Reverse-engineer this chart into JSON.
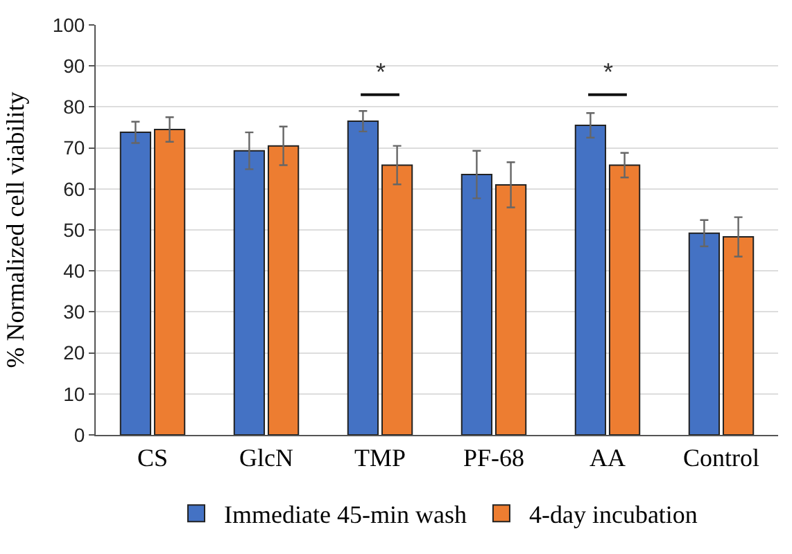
{
  "chart_data": {
    "type": "bar",
    "ylabel": "% Normalized cell viability",
    "categories": [
      "CS",
      "GlcN",
      "TMP",
      "PF-68",
      "AA",
      "Control"
    ],
    "series": [
      {
        "name": "Immediate 45-min wash",
        "color": "#4472c4",
        "values": [
          73.8,
          69.3,
          76.5,
          63.5,
          75.5,
          49.2
        ],
        "errors": [
          2.6,
          4.5,
          2.5,
          5.8,
          3.0,
          3.2
        ]
      },
      {
        "name": "4-day incubation",
        "color": "#ed7d31",
        "values": [
          74.5,
          70.5,
          65.8,
          61.0,
          65.8,
          48.3
        ],
        "errors": [
          3.0,
          4.7,
          4.7,
          5.5,
          3.0,
          4.8
        ]
      }
    ],
    "ylim": [
      0,
      100
    ],
    "yticks": [
      0,
      10,
      20,
      30,
      40,
      50,
      60,
      70,
      80,
      90,
      100
    ],
    "annotations": [
      "*",
      "*"
    ],
    "grid": "y",
    "legend": "bottom"
  }
}
